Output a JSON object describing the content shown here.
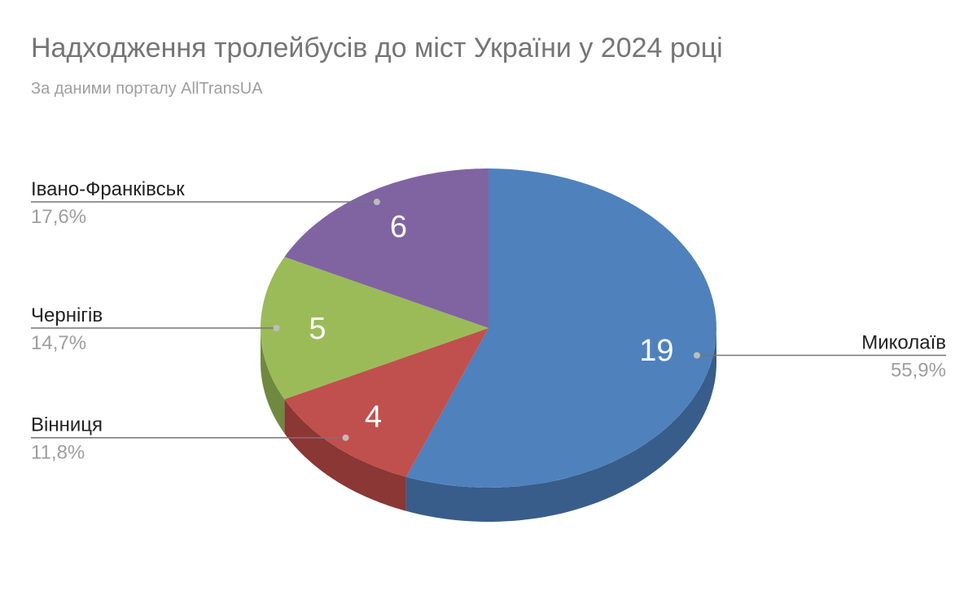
{
  "chart_data": {
    "type": "pie3d",
    "title": "Надходження тролейбусів до міст України у 2024 році",
    "subtitle": "За даними порталу AllTransUA",
    "categories": [
      "Миколаїв",
      "Вінниця",
      "Чернігів",
      "Івано-Франківськ"
    ],
    "values": [
      19,
      4,
      5,
      6
    ],
    "percent_values": [
      55.9,
      11.8,
      14.7,
      17.6
    ],
    "percent_labels": [
      "55,9%",
      "11,8%",
      "14,7%",
      "17,6%"
    ],
    "colors": [
      "#4f81bd",
      "#c0504d",
      "#9bbb59",
      "#8064a2"
    ],
    "side_colors": [
      "#385d8a",
      "#8a3735",
      "#71893f",
      "#5c4776"
    ]
  }
}
